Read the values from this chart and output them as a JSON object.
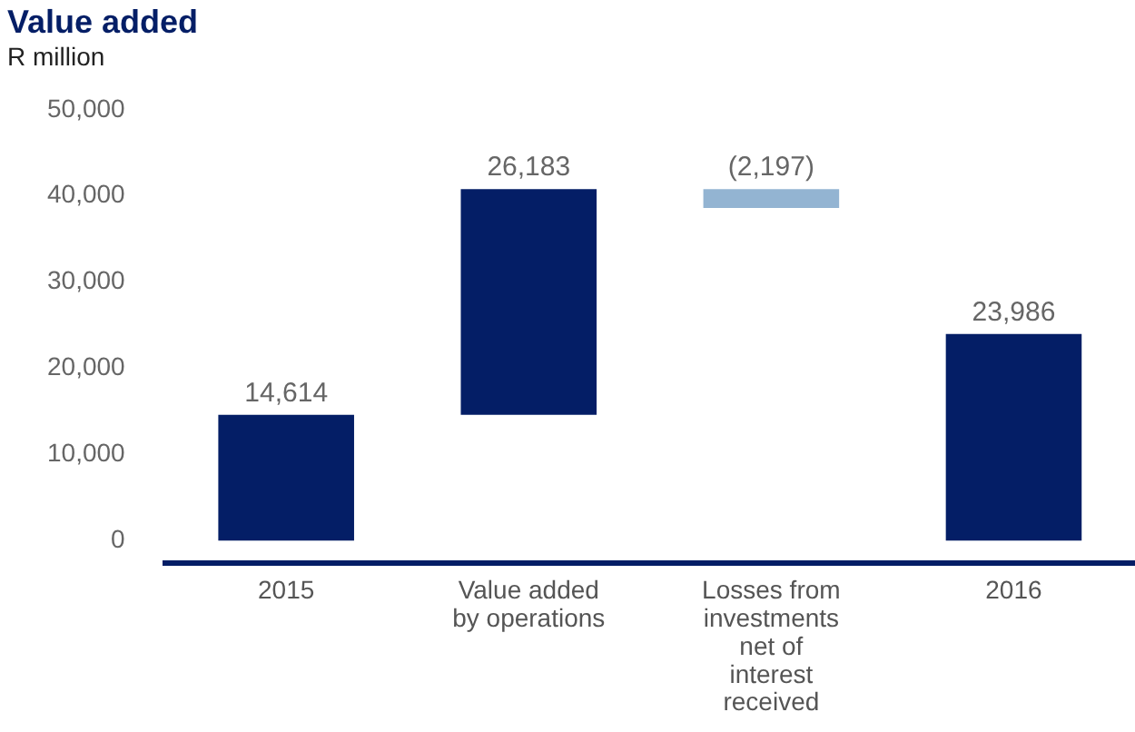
{
  "chart_data": {
    "type": "bar",
    "title": "Value added",
    "subtitle": "R million",
    "categories": [
      "2015",
      "Value added by operations",
      "Losses from investments net of interest received",
      "2016"
    ],
    "values": [
      14614,
      26183,
      -2197,
      23986
    ],
    "base": [
      0,
      14614,
      40797,
      0
    ],
    "colors": [
      "#041e66",
      "#041e66",
      "#93b4d2",
      "#041e66"
    ],
    "value_labels": [
      "14,614",
      "26,183",
      "(2,197)",
      "23,986"
    ],
    "ylim": [
      -2600,
      50000
    ],
    "yticks": [
      0,
      {
        "value": 10000,
        "label": "10,000"
      },
      {
        "value": 20000,
        "label": "20,000"
      },
      {
        "value": 30000,
        "label": "30,000"
      },
      {
        "value": 40000,
        "label": "40,000"
      },
      {
        "value": 50000,
        "label": "50,000"
      }
    ],
    "grid": false,
    "legend": false
  }
}
